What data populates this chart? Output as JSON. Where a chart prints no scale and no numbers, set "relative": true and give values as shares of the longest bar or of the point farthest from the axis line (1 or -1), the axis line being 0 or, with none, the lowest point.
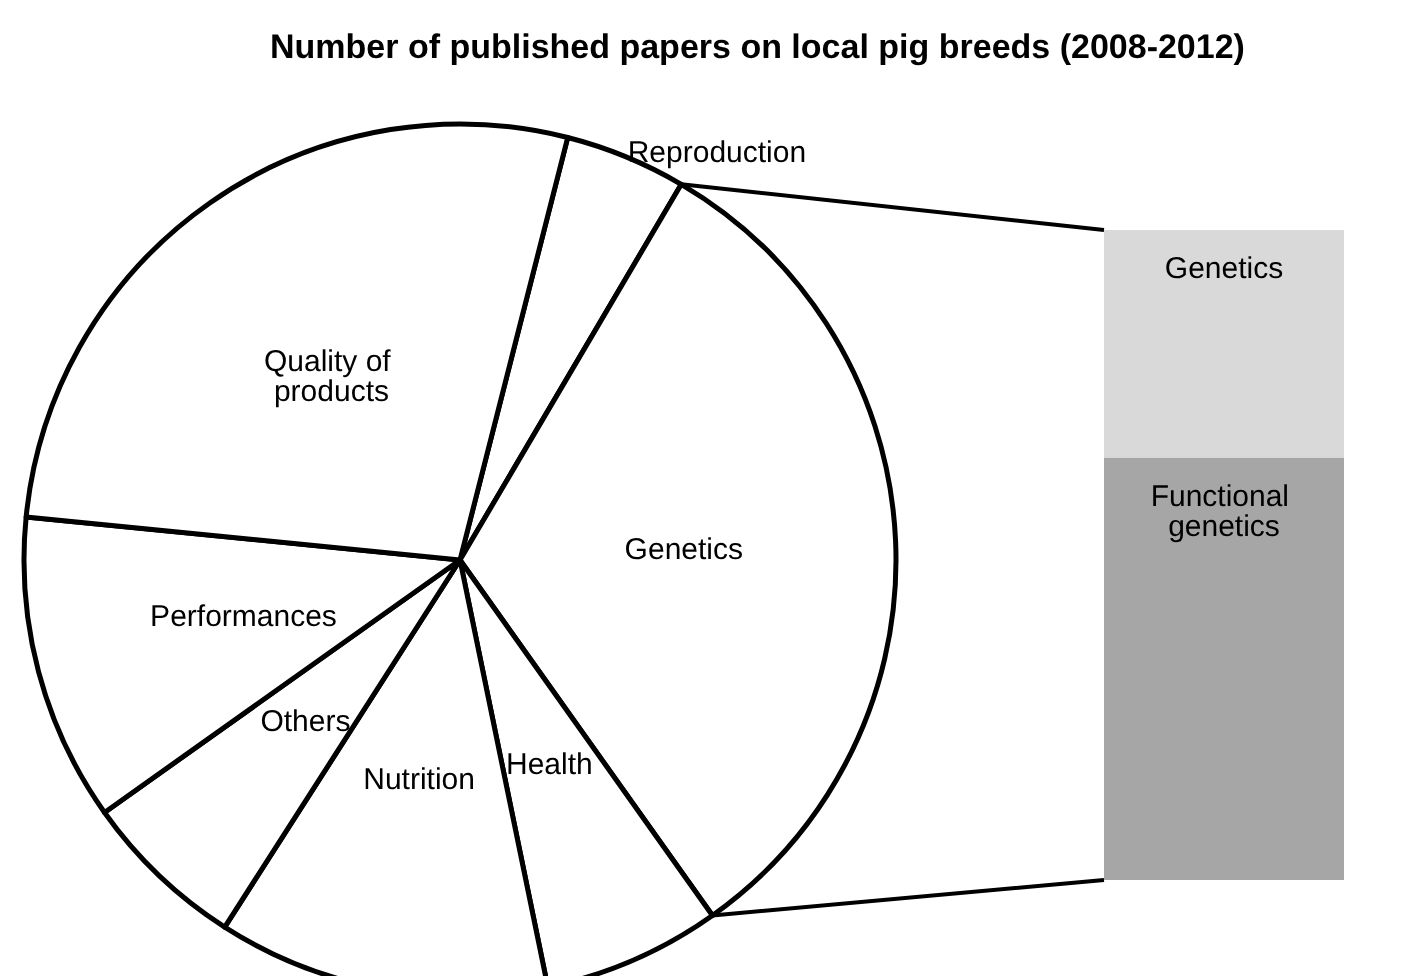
{
  "chart_data": [
    {
      "type": "pie",
      "title": "Number of published papers on local pig breeds (2008-2012)",
      "categories": [
        "Reproduction",
        "Genetics",
        "Health",
        "Nutrition",
        "Others",
        "Performances",
        "Quality of products"
      ],
      "values": [
        4.5,
        31.7,
        6.6,
        12.3,
        6.1,
        11.4,
        27.4
      ],
      "colors": [
        "#ffffff",
        "#ffffff",
        "#ffffff",
        "#ffffff",
        "#ffffff",
        "#ffffff",
        "#ffffff"
      ],
      "legend": false
    },
    {
      "type": "bar",
      "stacked": true,
      "relative": true,
      "categories": [
        null
      ],
      "series": [
        {
          "name": "Functional genetics",
          "color": "#a6a6a6",
          "values": [
            0.65
          ]
        },
        {
          "name": "Genetics",
          "color": "#d9d9d9",
          "values": [
            0.35
          ]
        }
      ]
    }
  ]
}
